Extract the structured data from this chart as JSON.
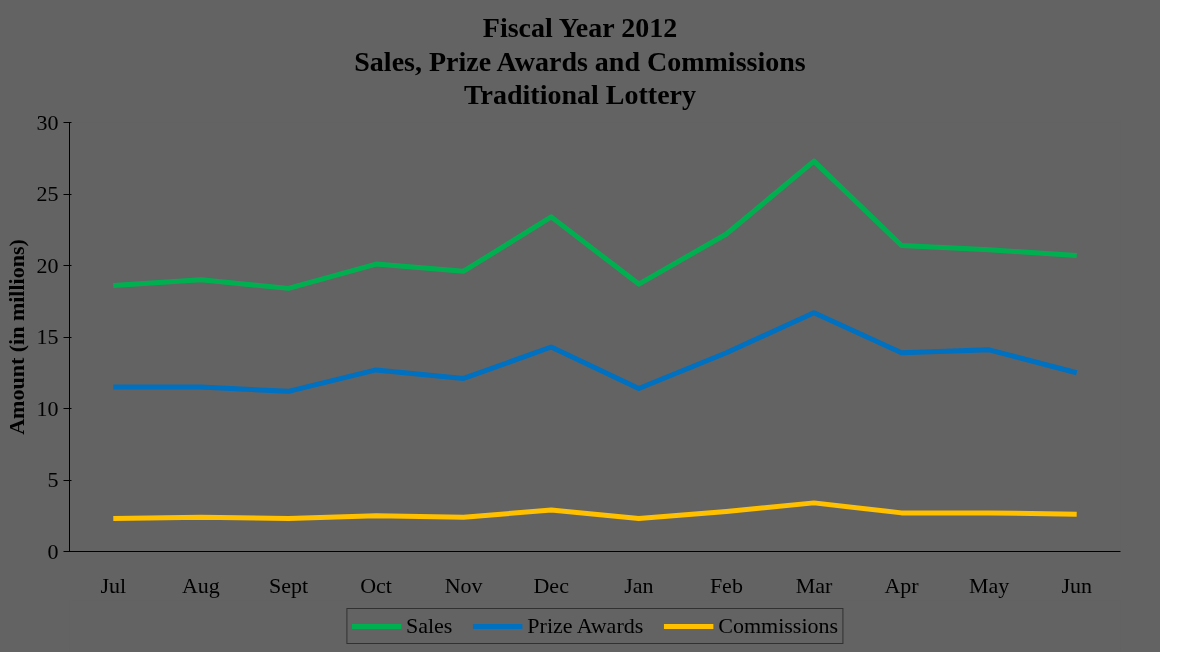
{
  "chart_data": {
    "type": "line",
    "title": "Fiscal Year 2012\nSales, Prize Awards and Commissions\nTraditional Lottery",
    "ylabel": "Amount (in millions)",
    "categories": [
      "Jul",
      "Aug",
      "Sept",
      "Oct",
      "Nov",
      "Dec",
      "Jan",
      "Feb",
      "Mar",
      "Apr",
      "May",
      "Jun"
    ],
    "series": [
      {
        "name": "Sales",
        "color": "#00b050",
        "values": [
          18.6,
          19.0,
          18.4,
          20.1,
          19.6,
          23.4,
          18.7,
          22.2,
          27.3,
          21.4,
          21.1,
          20.7
        ]
      },
      {
        "name": "Prize Awards",
        "color": "#0070c0",
        "values": [
          11.5,
          11.5,
          11.2,
          12.7,
          12.1,
          14.3,
          11.4,
          13.9,
          16.7,
          13.9,
          14.1,
          12.5
        ]
      },
      {
        "name": "Commissions",
        "color": "#ffc000",
        "values": [
          2.3,
          2.4,
          2.3,
          2.5,
          2.4,
          2.9,
          2.3,
          2.8,
          3.4,
          2.7,
          2.7,
          2.6
        ]
      }
    ],
    "ylim": [
      0,
      30
    ],
    "yticks": [
      0,
      5,
      10,
      15,
      20,
      25,
      30
    ],
    "grid": false,
    "legend": "bottom",
    "marker": "none",
    "line_style": "solid"
  }
}
